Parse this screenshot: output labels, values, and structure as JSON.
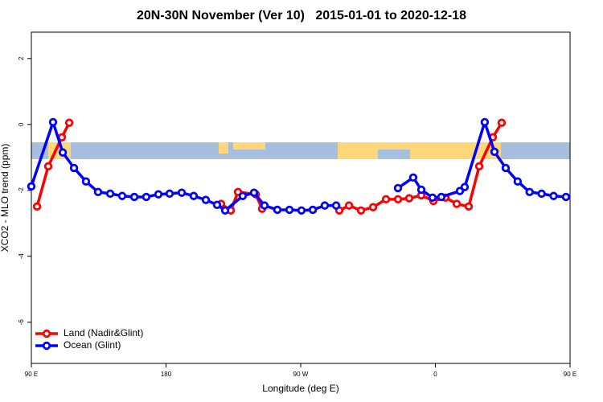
{
  "chart_data": {
    "type": "line",
    "title": "20N-30N November (Ver 10)   2015-01-01 to 2020-12-18",
    "x_label": "Longitude (deg E)",
    "y_label": "XCO2 - MLO trend (ppm)",
    "xlim": [
      90,
      450
    ],
    "ylim": [
      -7.25,
      2.8
    ],
    "xticks": [
      {
        "value": 90,
        "label": "90 E"
      },
      {
        "value": 180,
        "label": "180"
      },
      {
        "value": 270,
        "label": "90 W"
      },
      {
        "value": 360,
        "label": "0"
      },
      {
        "value": 450,
        "label": "90 E"
      }
    ],
    "yticks": [
      -6,
      -4,
      -2,
      0,
      2
    ],
    "legend": "bottom left",
    "series": [
      {
        "name": "Land (Nadir&Glint)",
        "color": "#ff0000",
        "x": [
          93.8,
          101.3,
          110.4,
          115.3,
          null,
          216.8,
          223.3,
          228.1,
          240,
          244.2,
          null,
          295.8,
          302.3,
          310.3,
          318.4,
          327,
          335,
          342.5,
          350.6,
          358.7,
          366.7,
          374.3,
          382.3,
          389.3,
          398.4,
          404.3
        ],
        "values": [
          -2.49,
          -1.27,
          -0.39,
          0.05,
          null,
          -2.41,
          -2.61,
          -2.05,
          -2.12,
          -2.56,
          null,
          -2.61,
          -2.46,
          -2.61,
          -2.51,
          -2.27,
          -2.27,
          -2.24,
          -2.15,
          -2.32,
          -2.22,
          -2.41,
          -2.49,
          -1.27,
          -0.39,
          0.05
        ]
      },
      {
        "name": "Ocean (Glint)",
        "color": "#0000ff",
        "x": [
          90,
          104.5,
          111,
          118.5,
          126.5,
          134.6,
          142.7,
          150.7,
          158.8,
          166.8,
          174.9,
          182.4,
          190.5,
          198.5,
          206.6,
          214.1,
          219.5,
          231.3,
          238.8,
          245.8,
          254.4,
          262.5,
          270.5,
          278.1,
          286.1,
          293.7,
          null,
          335,
          345.2,
          350.6,
          358.1,
          364,
          376.4,
          379.6,
          393,
          399.5,
          407,
          415,
          423,
          431,
          439,
          447.3
        ],
        "values": [
          -1.88,
          0.07,
          -0.85,
          -1.32,
          -1.73,
          -2.05,
          -2.1,
          -2.17,
          -2.2,
          -2.2,
          -2.12,
          -2.1,
          -2.07,
          -2.17,
          -2.29,
          -2.44,
          -2.61,
          -2.17,
          -2.07,
          -2.46,
          -2.59,
          -2.59,
          -2.61,
          -2.59,
          -2.46,
          -2.46,
          null,
          -1.93,
          -1.61,
          -1.98,
          -2.22,
          -2.2,
          -2.02,
          -1.9,
          0.07,
          -0.83,
          -1.32,
          -1.73,
          -2.05,
          -2.1,
          -2.17,
          -2.2
        ]
      }
    ]
  }
}
